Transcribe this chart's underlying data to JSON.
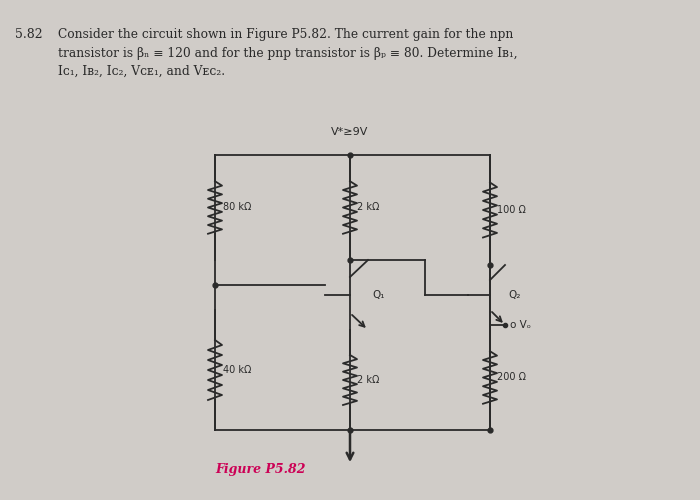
{
  "bg_color": "#d0ccc8",
  "line_color": "#2a2a2a",
  "text_color": "#2a2a2a",
  "figure_label_color": "#cc0055",
  "vplus_label": "V*≥9V",
  "figure_label": "Figure P5.82",
  "resistor_80k": "80 kΩ",
  "resistor_2k_top": "2 kΩ",
  "resistor_100": "100 Ω",
  "resistor_40k": "40 kΩ",
  "resistor_2k_bot": "2 kΩ",
  "resistor_200": "200 Ω",
  "q1_label": "Q₁",
  "q2_label": "Q₂",
  "vo_label": "Vₒ",
  "header_line1": "5.82  Consider the circuit shown in Figure P5.82. The current gain for the npn",
  "header_line2": "transistor is βₙ ≡ 120 and for the pnp transistor is βₚ ≡ 80. Determine Iʙ₁,",
  "header_line3": "Iᴄ₁, Iʙ₂, Iᴄ₂, Vᴄᴇ₁, and Vᴇᴄ₂."
}
